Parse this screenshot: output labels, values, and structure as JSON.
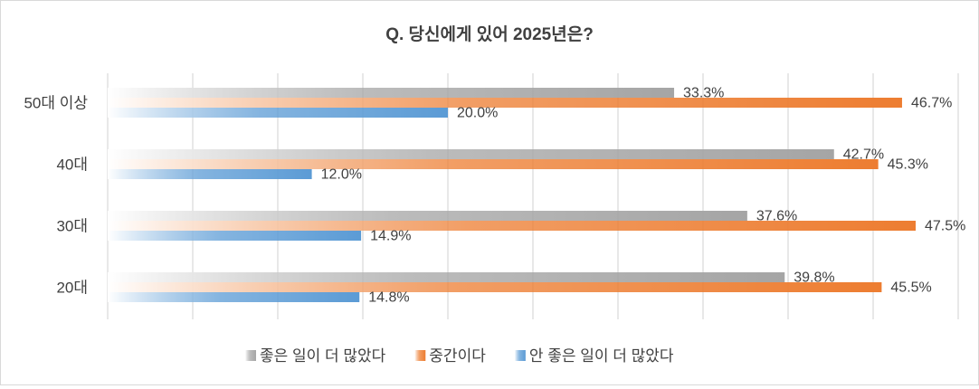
{
  "chart_data": {
    "type": "bar",
    "orientation": "horizontal",
    "title": "Q. 당신에게 있어 2025년은?",
    "categories": [
      "50대 이상",
      "40대",
      "30대",
      "20대"
    ],
    "series": [
      {
        "name": "좋은 일이 더 많았다",
        "values": [
          33.3,
          42.7,
          37.6,
          39.8
        ],
        "labels": [
          "33.3%",
          "42.7%",
          "37.6%",
          "39.8%"
        ],
        "color": "#a5a5a5"
      },
      {
        "name": "중간이다",
        "values": [
          46.7,
          45.3,
          47.5,
          45.5
        ],
        "labels": [
          "46.7%",
          "45.3%",
          "47.5%",
          "45.5%"
        ],
        "color": "#ed7d31"
      },
      {
        "name": "안 좋은 일이 더 많았다",
        "values": [
          20.0,
          12.0,
          14.9,
          14.8
        ],
        "labels": [
          "20.0%",
          "12.0%",
          "14.9%",
          "14.8%"
        ],
        "color": "#5b9bd5"
      }
    ],
    "xlim": [
      0,
      50
    ],
    "grid": true,
    "legend_position": "bottom"
  },
  "colors": {
    "gray": "#a5a5a5",
    "orange": "#ed7d31",
    "blue": "#5b9bd5",
    "grid": "#d9d9d9",
    "text": "#404040"
  }
}
